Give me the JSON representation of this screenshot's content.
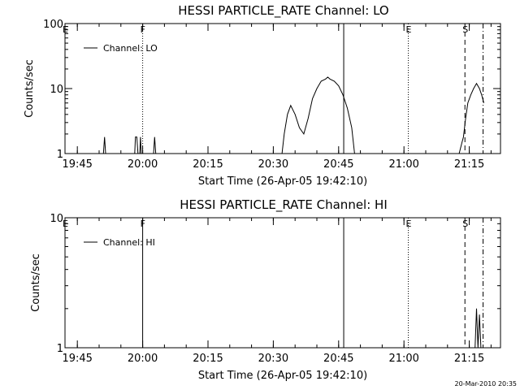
{
  "footer_text": "20-Mar-2010 20:35",
  "chart_data": [
    {
      "type": "line",
      "title": "HESSI PARTICLE_RATE Channel: LO",
      "xlabel": "Start Time (26-Apr-05 19:42:10)",
      "ylabel": "Counts/sec",
      "yscale": "log",
      "ylim": [
        1,
        100
      ],
      "xlim": [
        "19:42:10",
        "21:22:10"
      ],
      "x_ticks": [
        "19:45",
        "20:00",
        "20:15",
        "20:30",
        "20:45",
        "21:00",
        "21:15"
      ],
      "y_ticks": [
        "1",
        "10",
        "100"
      ],
      "legend": {
        "label": "Channel: LO",
        "position": "top-left"
      },
      "markers": [
        {
          "label": "E",
          "time": "19:42:10",
          "style": "none"
        },
        {
          "label": "F",
          "time": "20:00:00",
          "style": "dotted"
        },
        {
          "label": "",
          "time": "20:46:10",
          "style": "solid"
        },
        {
          "label": "E",
          "time": "21:01:00",
          "style": "dotted"
        },
        {
          "label": "S",
          "time": "21:14:00",
          "style": "dashed"
        },
        {
          "label": "",
          "time": "21:18:10",
          "style": "dashdot"
        }
      ],
      "series": [
        {
          "points": [
            [
              "19:51:00",
              1
            ],
            [
              "19:51:15",
              1.8
            ],
            [
              "19:51:30",
              1
            ],
            [
              "19:58:10",
              1
            ],
            [
              "19:58:20",
              1.8
            ],
            [
              "19:58:40",
              1.8
            ],
            [
              "19:58:55",
              1
            ],
            [
              "19:59:20",
              1
            ],
            [
              "19:59:30",
              1.8
            ],
            [
              "19:59:40",
              1
            ],
            [
              "20:02:30",
              1
            ],
            [
              "20:02:45",
              1.8
            ],
            [
              "20:03:00",
              1
            ],
            [
              "20:32:00",
              1
            ],
            [
              "20:32:30",
              2
            ],
            [
              "20:33:15",
              4
            ],
            [
              "20:34:00",
              5.5
            ],
            [
              "20:35:00",
              4
            ],
            [
              "20:36:00",
              2.5
            ],
            [
              "20:37:00",
              2
            ],
            [
              "20:38:00",
              3.5
            ],
            [
              "20:39:00",
              7
            ],
            [
              "20:40:00",
              10
            ],
            [
              "20:41:00",
              13
            ],
            [
              "20:42:00",
              14
            ],
            [
              "20:42:30",
              15
            ],
            [
              "20:43:00",
              14
            ],
            [
              "20:44:00",
              13
            ],
            [
              "20:45:00",
              11
            ],
            [
              "20:46:00",
              8
            ],
            [
              "20:47:00",
              5
            ],
            [
              "20:48:00",
              2.5
            ],
            [
              "20:48:40",
              1
            ],
            [
              "21:12:40",
              1
            ],
            [
              "21:13:20",
              1.5
            ],
            [
              "21:13:40",
              1.8
            ],
            [
              "21:14:10",
              3.5
            ],
            [
              "21:14:40",
              6
            ],
            [
              "21:15:20",
              8
            ],
            [
              "21:16:00",
              10
            ],
            [
              "21:16:40",
              12
            ],
            [
              "21:17:20",
              10
            ],
            [
              "21:17:50",
              8
            ],
            [
              "21:18:20",
              6
            ]
          ]
        }
      ]
    },
    {
      "type": "line",
      "title": "HESSI PARTICLE_RATE Channel: HI",
      "xlabel": "Start Time (26-Apr-05 19:42:10)",
      "ylabel": "Counts/sec",
      "yscale": "log",
      "ylim": [
        1,
        10
      ],
      "xlim": [
        "19:42:10",
        "21:22:10"
      ],
      "x_ticks": [
        "19:45",
        "20:00",
        "20:15",
        "20:30",
        "20:45",
        "21:00",
        "21:15"
      ],
      "y_ticks": [
        "1",
        "10"
      ],
      "legend": {
        "label": "Channel: HI",
        "position": "top-left"
      },
      "markers": [
        {
          "label": "E",
          "time": "19:42:10",
          "style": "none"
        },
        {
          "label": "F",
          "time": "20:00:00",
          "style": "solid"
        },
        {
          "label": "",
          "time": "20:46:10",
          "style": "solid"
        },
        {
          "label": "E",
          "time": "21:01:00",
          "style": "dotted"
        },
        {
          "label": "S",
          "time": "21:14:00",
          "style": "dashed"
        },
        {
          "label": "",
          "time": "21:18:10",
          "style": "dashdot"
        }
      ],
      "series": [
        {
          "points": [
            [
              "21:16:20",
              1
            ],
            [
              "21:16:40",
              2
            ],
            [
              "21:17:00",
              1
            ],
            [
              "21:17:20",
              1.8
            ],
            [
              "21:17:40",
              1
            ]
          ]
        }
      ]
    }
  ]
}
